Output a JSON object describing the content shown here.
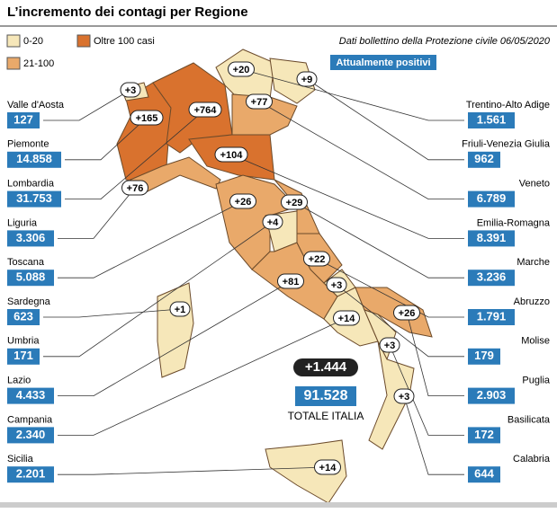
{
  "header": {
    "title": "L’incremento dei contagi per Regione",
    "source": "Dati bollettino della Protezione civile 06/05/2020",
    "subtitle": "Attualmente positivi"
  },
  "legend": [
    {
      "label": "0-20"
    },
    {
      "label": "Oltre 100 casi"
    },
    {
      "label": "21-100"
    }
  ],
  "regions_left": [
    {
      "name": "Valle d'Aosta",
      "total": "127",
      "increment": "+3"
    },
    {
      "name": "Piemonte",
      "total": "14.858",
      "increment": "+165"
    },
    {
      "name": "Lombardia",
      "total": "31.753",
      "increment": "+764"
    },
    {
      "name": "Liguria",
      "total": "3.306",
      "increment": "+76"
    },
    {
      "name": "Toscana",
      "total": "5.088",
      "increment": "+26"
    },
    {
      "name": "Sardegna",
      "total": "623",
      "increment": "+1"
    },
    {
      "name": "Umbria",
      "total": "171",
      "increment": "+4"
    },
    {
      "name": "Lazio",
      "total": "4.433",
      "increment": "+81"
    },
    {
      "name": "Campania",
      "total": "2.340",
      "increment": "+14"
    },
    {
      "name": "Sicilia",
      "total": "2.201",
      "increment": "+14"
    }
  ],
  "regions_right": [
    {
      "name": "Trentino-Alto Adige",
      "total": "1.561",
      "increment": "+20"
    },
    {
      "name": "Friuli-Venezia Giulia",
      "total": "962",
      "increment": "+9"
    },
    {
      "name": "Veneto",
      "total": "6.789",
      "increment": "+77"
    },
    {
      "name": "Emilia-Romagna",
      "total": "8.391",
      "increment": "+104"
    },
    {
      "name": "Marche",
      "total": "3.236",
      "increment": "+29"
    },
    {
      "name": "Abruzzo",
      "total": "1.791",
      "increment": "+22"
    },
    {
      "name": "Molise",
      "total": "179",
      "increment": "+3"
    },
    {
      "name": "Puglia",
      "total": "2.903",
      "increment": "+26"
    },
    {
      "name": "Basilicata",
      "total": "172",
      "increment": "+3"
    },
    {
      "name": "Calabria",
      "total": "644",
      "increment": "+3"
    }
  ],
  "totals": {
    "increment": "+1.444",
    "total": "91.528",
    "label": "TOTALE ITALIA"
  }
}
